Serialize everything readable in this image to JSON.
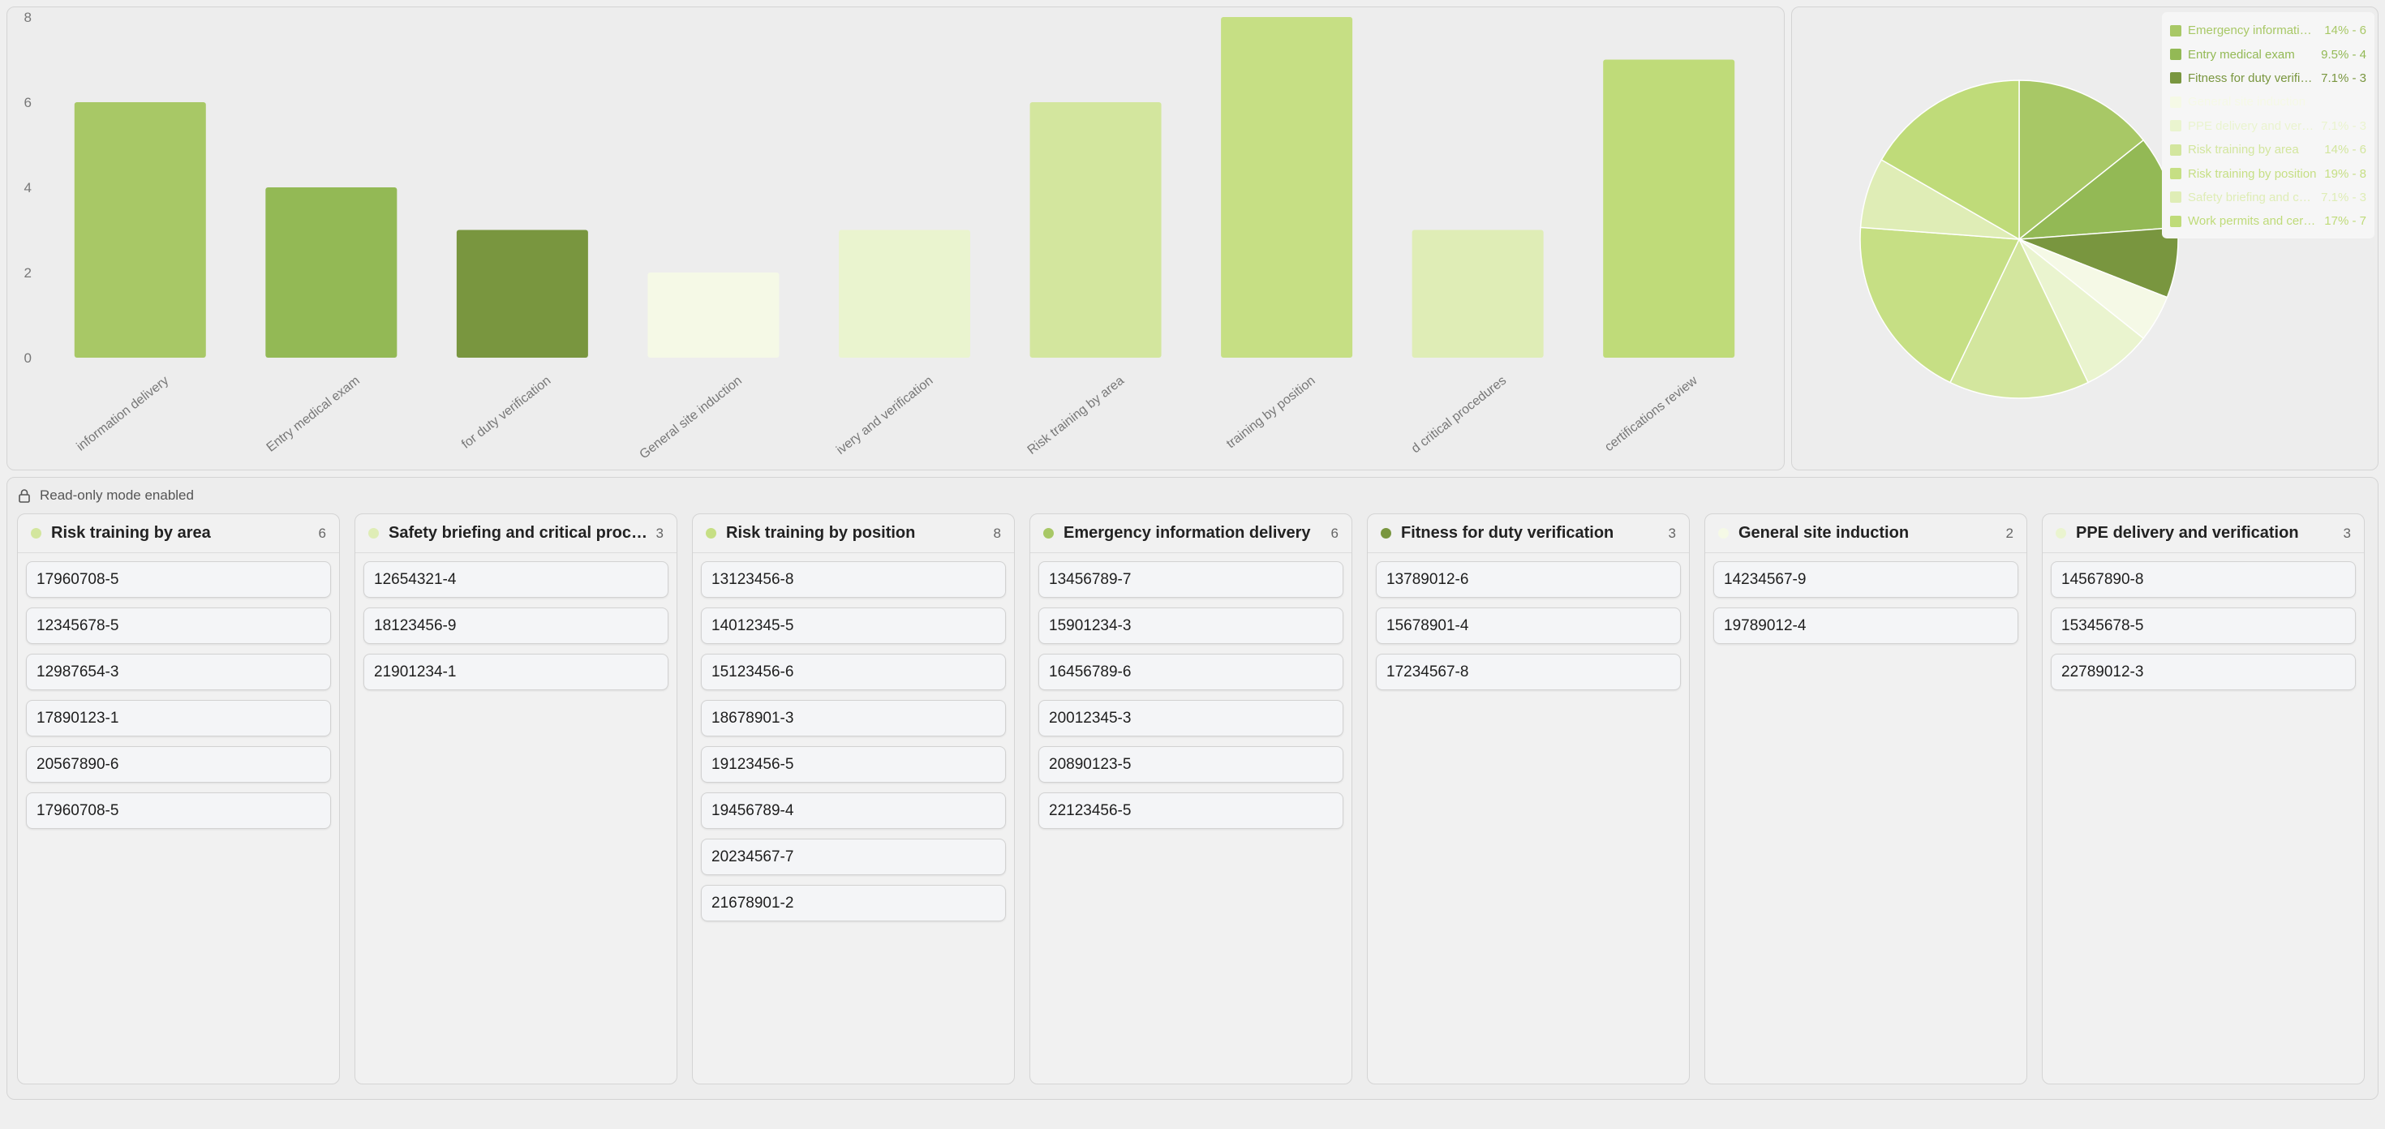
{
  "chart_data": [
    {
      "type": "bar",
      "categories": [
        "Emergency information delivery",
        "Entry medical exam",
        "Fitness for duty verification",
        "General site induction",
        "PPE delivery and verification",
        "Risk training by area",
        "Risk training by position",
        "Safety briefing and critical procedures",
        "Work permits and certifications review"
      ],
      "tick_labels": [
        "information delivery",
        "Entry medical exam",
        "for duty verification",
        "General site induction",
        "ivery and verification",
        "Risk training by area",
        "training by position",
        "d critical procedures",
        "certifications review"
      ],
      "values": [
        6,
        4,
        3,
        2,
        3,
        6,
        8,
        3,
        7
      ],
      "colors": [
        "#a8c866",
        "#93b955",
        "#79963f",
        "#f5f9e6",
        "#eaf4cf",
        "#d3e69e",
        "#c6df84",
        "#dfedb6",
        "#bfdb79"
      ],
      "ylim": [
        0,
        8
      ],
      "yticks": [
        0,
        2,
        4,
        6,
        8
      ],
      "grid": false
    },
    {
      "type": "pie",
      "labels": [
        "Emergency information delivery",
        "Entry medical exam",
        "Fitness for duty verification",
        "General site induction",
        "PPE delivery and verification",
        "Risk training by area",
        "Risk training by position",
        "Safety briefing and critical procedures",
        "Work permits and certifications review"
      ],
      "values": [
        6,
        4,
        3,
        2,
        3,
        6,
        8,
        3,
        7
      ],
      "legend_values": [
        "14% - 6",
        "9.5% - 4",
        "7.1% - 3",
        "",
        "7.1% - 3",
        "14% - 6",
        "19% - 8",
        "7.1% - 3",
        "17% - 7"
      ],
      "colors": [
        "#a8c866",
        "#93b955",
        "#79963f",
        "#f5f9e6",
        "#eaf4cf",
        "#d3e69e",
        "#c6df84",
        "#dfedb6",
        "#bfdb79"
      ],
      "legend_placement": "top-right"
    }
  ],
  "board": {
    "readonly_label": "Read-only mode enabled",
    "columns": [
      {
        "title": "Risk training by area",
        "count": "6",
        "color": "#d3e69e",
        "cards": [
          "17960708-5",
          "12345678-5",
          "12987654-3",
          "17890123-1",
          "20567890-6",
          "17960708-5"
        ]
      },
      {
        "title": "Safety briefing and critical procedures",
        "count": "3",
        "color": "#dfedb6",
        "cards": [
          "12654321-4",
          "18123456-9",
          "21901234-1"
        ]
      },
      {
        "title": "Risk training by position",
        "count": "8",
        "color": "#c6df84",
        "cards": [
          "13123456-8",
          "14012345-5",
          "15123456-6",
          "18678901-3",
          "19123456-5",
          "19456789-4",
          "20234567-7",
          "21678901-2"
        ]
      },
      {
        "title": "Emergency information delivery",
        "count": "6",
        "color": "#a8c866",
        "cards": [
          "13456789-7",
          "15901234-3",
          "16456789-6",
          "20012345-3",
          "20890123-5",
          "22123456-5"
        ]
      },
      {
        "title": "Fitness for duty verification",
        "count": "3",
        "color": "#79963f",
        "cards": [
          "13789012-6",
          "15678901-4",
          "17234567-8"
        ]
      },
      {
        "title": "General site induction",
        "count": "2",
        "color": "#f5f9e6",
        "cards": [
          "14234567-9",
          "19789012-4"
        ]
      },
      {
        "title": "PPE delivery and verification",
        "count": "3",
        "color": "#eaf4cf",
        "cards": [
          "14567890-8",
          "15345678-5",
          "22789012-3"
        ]
      }
    ]
  }
}
